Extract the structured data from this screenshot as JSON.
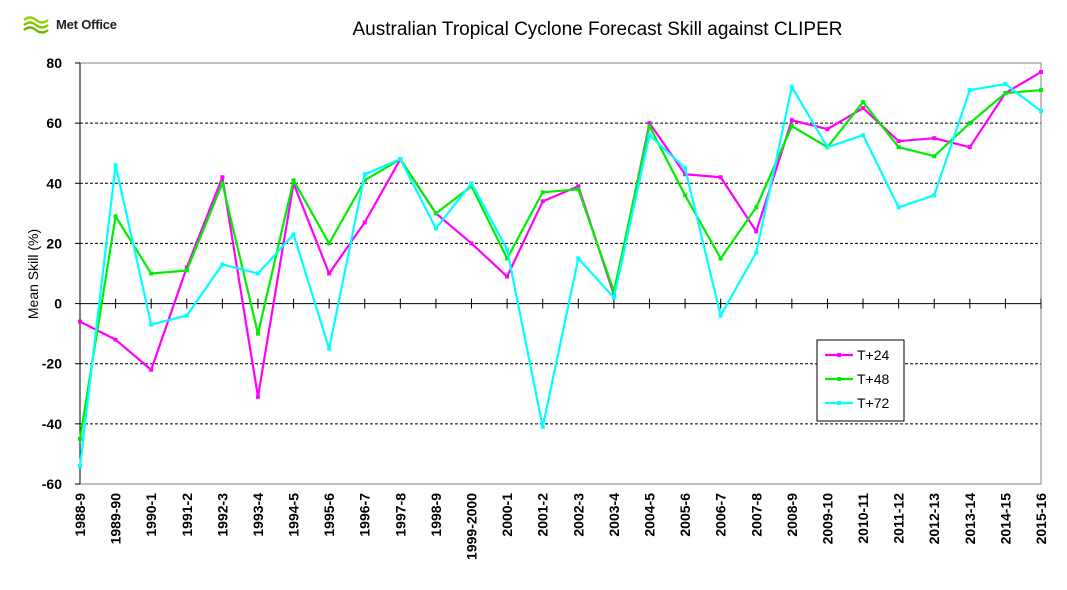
{
  "logo": {
    "text": "Met Office"
  },
  "chart_data": {
    "type": "line",
    "title": "Australian Tropical Cyclone Forecast Skill against CLIPER",
    "xlabel": "",
    "ylabel": "Mean Skill (%)",
    "ylim": [
      -60,
      80
    ],
    "yticks": [
      -60,
      -40,
      -20,
      0,
      20,
      40,
      60,
      80
    ],
    "grid": "horizontal dashed",
    "legend_position": "lower-right",
    "categories": [
      "1988-9",
      "1989-90",
      "1990-1",
      "1991-2",
      "1992-3",
      "1993-4",
      "1994-5",
      "1995-6",
      "1996-7",
      "1997-8",
      "1998-9",
      "1999-2000",
      "2000-1",
      "2001-2",
      "2002-3",
      "2003-4",
      "2004-5",
      "2005-6",
      "2006-7",
      "2007-8",
      "2008-9",
      "2009-10",
      "2010-11",
      "2011-12",
      "2012-13",
      "2013-14",
      "2014-15",
      "2015-16"
    ],
    "series": [
      {
        "name": "T+24",
        "color": "#ff00ff",
        "values": [
          -6,
          -12,
          -22,
          12,
          42,
          -31,
          40,
          10,
          27,
          48,
          30,
          20,
          9,
          34,
          39,
          3,
          60,
          43,
          42,
          24,
          61,
          58,
          65,
          54,
          55,
          52,
          70,
          77
        ]
      },
      {
        "name": "T+48",
        "color": "#00ee00",
        "values": [
          -45,
          29,
          10,
          11,
          40,
          -10,
          41,
          20,
          41,
          48,
          30,
          39,
          15,
          37,
          38,
          4,
          59,
          36,
          15,
          32,
          59,
          52,
          67,
          52,
          49,
          60,
          70,
          71
        ]
      },
      {
        "name": "T+72",
        "color": "#00ffff",
        "values": [
          -54,
          46,
          -7,
          -4,
          13,
          10,
          23,
          -15,
          43,
          48,
          25,
          40,
          18,
          -41,
          15,
          2,
          56,
          45,
          -4,
          17,
          72,
          52,
          56,
          32,
          36,
          71,
          73,
          64
        ]
      }
    ]
  }
}
